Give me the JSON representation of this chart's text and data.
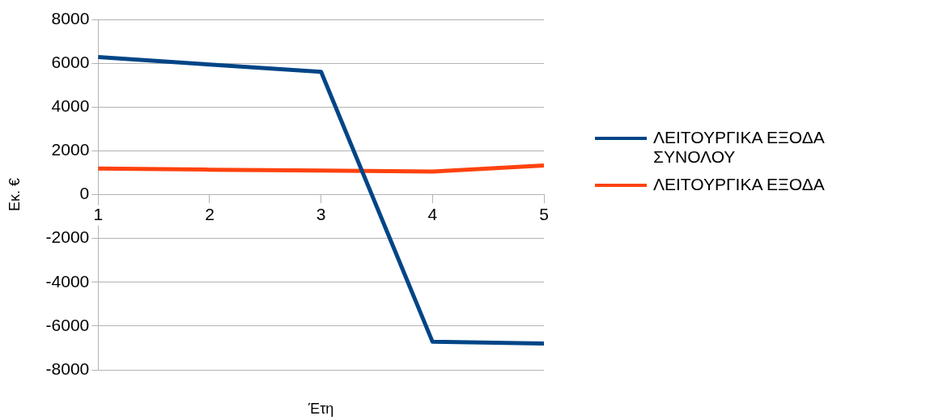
{
  "chart_data": {
    "type": "line",
    "xlabel": "Έτη",
    "ylabel": "Εκ. €",
    "categories": [
      "1",
      "2",
      "3",
      "4",
      "5"
    ],
    "series": [
      {
        "name": "ΛΕΙΤΟΥΡΓΙΚΑ ΕΞΟΔΑ ΣΥΝΟΛΟΥ",
        "color": "#004586",
        "values": [
          6280,
          5940,
          5610,
          -6720,
          -6800
        ]
      },
      {
        "name": "ΛΕΙΤΟΥΡΓΙΚΑ ΕΞΟΔΑ",
        "color": "#ff420e",
        "values": [
          1190,
          1140,
          1100,
          1050,
          1330
        ]
      }
    ],
    "ylim": [
      -8000,
      8000
    ],
    "yticks": [
      -8000,
      -6000,
      -4000,
      -2000,
      0,
      2000,
      4000,
      6000,
      8000
    ],
    "grid": "y",
    "legend": "right",
    "marker": "none",
    "line_style": "solid"
  }
}
